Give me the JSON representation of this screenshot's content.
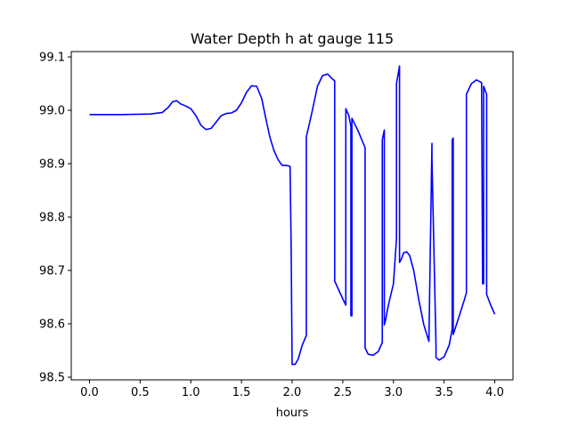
{
  "chart_data": {
    "type": "line",
    "title": "Water Depth h at gauge 115",
    "xlabel": "hours",
    "ylabel": "",
    "xlim": [
      -0.18,
      4.18
    ],
    "ylim": [
      98.495,
      99.11
    ],
    "x_ticks": [
      0.0,
      0.5,
      1.0,
      1.5,
      2.0,
      2.5,
      3.0,
      3.5,
      4.0
    ],
    "x_tick_labels": [
      "0.0",
      "0.5",
      "1.0",
      "1.5",
      "2.0",
      "2.5",
      "3.0",
      "3.5",
      "4.0"
    ],
    "y_ticks": [
      98.5,
      98.6,
      98.7,
      98.8,
      98.9,
      99.0,
      99.1
    ],
    "y_tick_labels": [
      "98.5",
      "98.6",
      "98.7",
      "98.8",
      "98.9",
      "99.0",
      "99.1"
    ],
    "grid": false,
    "legend": "none",
    "series": [
      {
        "color": "#0000ff",
        "x": [
          0.0,
          0.3,
          0.6,
          0.72,
          0.78,
          0.82,
          0.86,
          0.9,
          0.95,
          1.0,
          1.05,
          1.1,
          1.15,
          1.2,
          1.25,
          1.3,
          1.35,
          1.4,
          1.45,
          1.5,
          1.55,
          1.6,
          1.65,
          1.7,
          1.74,
          1.78,
          1.82,
          1.86,
          1.9,
          1.94,
          1.98,
          1.99,
          2.0,
          2.03,
          2.06,
          2.1,
          2.14,
          2.14,
          2.2,
          2.25,
          2.3,
          2.35,
          2.38,
          2.42,
          2.42,
          2.48,
          2.53,
          2.53,
          2.56,
          2.58,
          2.58,
          2.59,
          2.59,
          2.65,
          2.72,
          2.72,
          2.75,
          2.8,
          2.85,
          2.89,
          2.89,
          2.91,
          2.91,
          2.92,
          2.95,
          3.0,
          3.03,
          3.03,
          3.06,
          3.06,
          3.08,
          3.1,
          3.13,
          3.16,
          3.2,
          3.25,
          3.3,
          3.35,
          3.38,
          3.38,
          3.42,
          3.42,
          3.45,
          3.5,
          3.55,
          3.58,
          3.58,
          3.59,
          3.59,
          3.65,
          3.7,
          3.72,
          3.72,
          3.77,
          3.82,
          3.87,
          3.88,
          3.89,
          3.89,
          3.92,
          3.92,
          3.96,
          4.0
        ],
        "y": [
          98.992,
          98.992,
          98.993,
          98.996,
          99.006,
          99.016,
          99.018,
          99.012,
          99.008,
          99.003,
          98.99,
          98.972,
          98.964,
          98.966,
          98.978,
          98.99,
          98.994,
          98.995,
          99.0,
          99.014,
          99.034,
          99.046,
          99.045,
          99.022,
          98.985,
          98.95,
          98.925,
          98.908,
          98.897,
          98.897,
          98.895,
          98.75,
          98.524,
          98.524,
          98.534,
          98.56,
          98.578,
          98.95,
          99.0,
          99.045,
          99.065,
          99.068,
          99.062,
          99.055,
          98.68,
          98.655,
          98.635,
          99.003,
          98.99,
          98.97,
          98.615,
          98.615,
          98.985,
          98.962,
          98.93,
          98.555,
          98.543,
          98.541,
          98.548,
          98.565,
          98.945,
          98.963,
          98.598,
          98.605,
          98.635,
          98.675,
          98.76,
          99.05,
          99.083,
          98.715,
          98.722,
          98.733,
          98.735,
          98.728,
          98.7,
          98.645,
          98.598,
          98.567,
          98.938,
          98.91,
          98.56,
          98.537,
          98.532,
          98.538,
          98.56,
          98.59,
          98.945,
          98.948,
          98.58,
          98.615,
          98.645,
          98.658,
          99.03,
          99.05,
          99.057,
          99.052,
          98.675,
          98.675,
          99.045,
          99.03,
          98.655,
          98.635,
          98.618
        ]
      }
    ]
  }
}
